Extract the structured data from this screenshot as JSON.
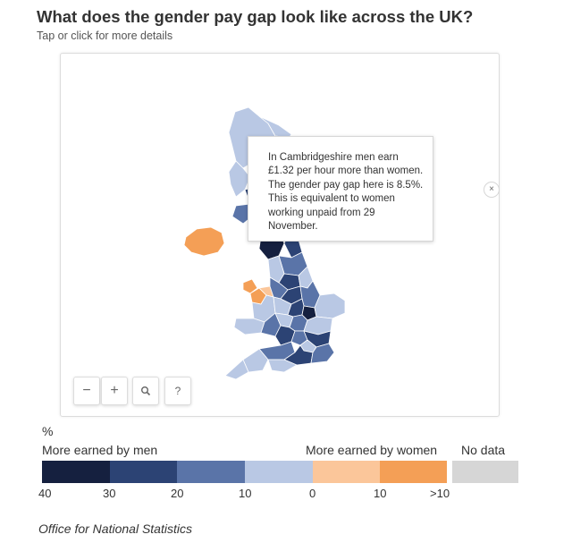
{
  "header": {
    "title": "What does the gender pay gap look like across the UK?",
    "subtitle": "Tap or click for more details"
  },
  "tooltip": {
    "text": "In Cambridgeshire men earn £1.32 per hour more than women. The gender pay gap here is 8.5%. This is equivalent to women working unpaid from 29 November.",
    "close_label": "×"
  },
  "controls": {
    "zoom_out": "−",
    "zoom_in": "+",
    "help": "?"
  },
  "legend": {
    "unit": "%",
    "men_label": "More earned by men",
    "women_label": "More earned by women",
    "nodata_label": "No data",
    "ticks": [
      "40",
      "30",
      "20",
      "10",
      "0",
      "10",
      ">10"
    ],
    "colors": {
      "men_40_30": "#15203f",
      "men_30_20": "#2c4374",
      "men_20_10": "#5a74a8",
      "men_10_0": "#b9c8e4",
      "women_0_10": "#fbc69a",
      "women_over_10": "#f49f56",
      "no_data": "#d6d6d6"
    }
  },
  "source": "Office for National Statistics"
}
